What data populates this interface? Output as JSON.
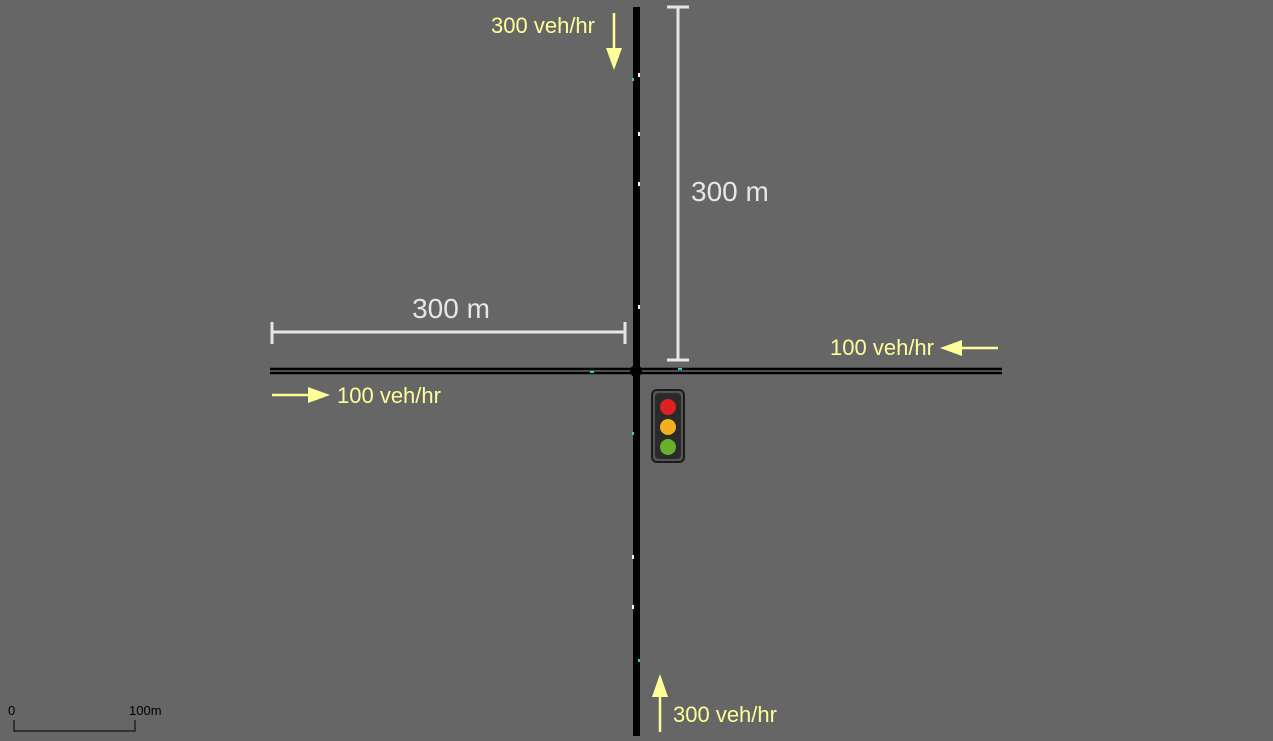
{
  "colors": {
    "background": "#666666",
    "road": "#000000",
    "flow_annotation": "#ffff99",
    "dimension_line": "#e6e6e6",
    "traffic_light_red": "#e02020",
    "traffic_light_yellow": "#f0b020",
    "traffic_light_green": "#6ab02a"
  },
  "flows": {
    "north_inflow": "300 veh/hr",
    "south_inflow": "300 veh/hr",
    "west_inflow": "100 veh/hr",
    "east_inflow": "100 veh/hr"
  },
  "dimensions": {
    "horizontal": "300 m",
    "vertical": "300 m"
  },
  "scale_bar": {
    "start_label": "0",
    "end_label": "100m"
  },
  "icons": {
    "signal": "traffic-light-icon"
  }
}
